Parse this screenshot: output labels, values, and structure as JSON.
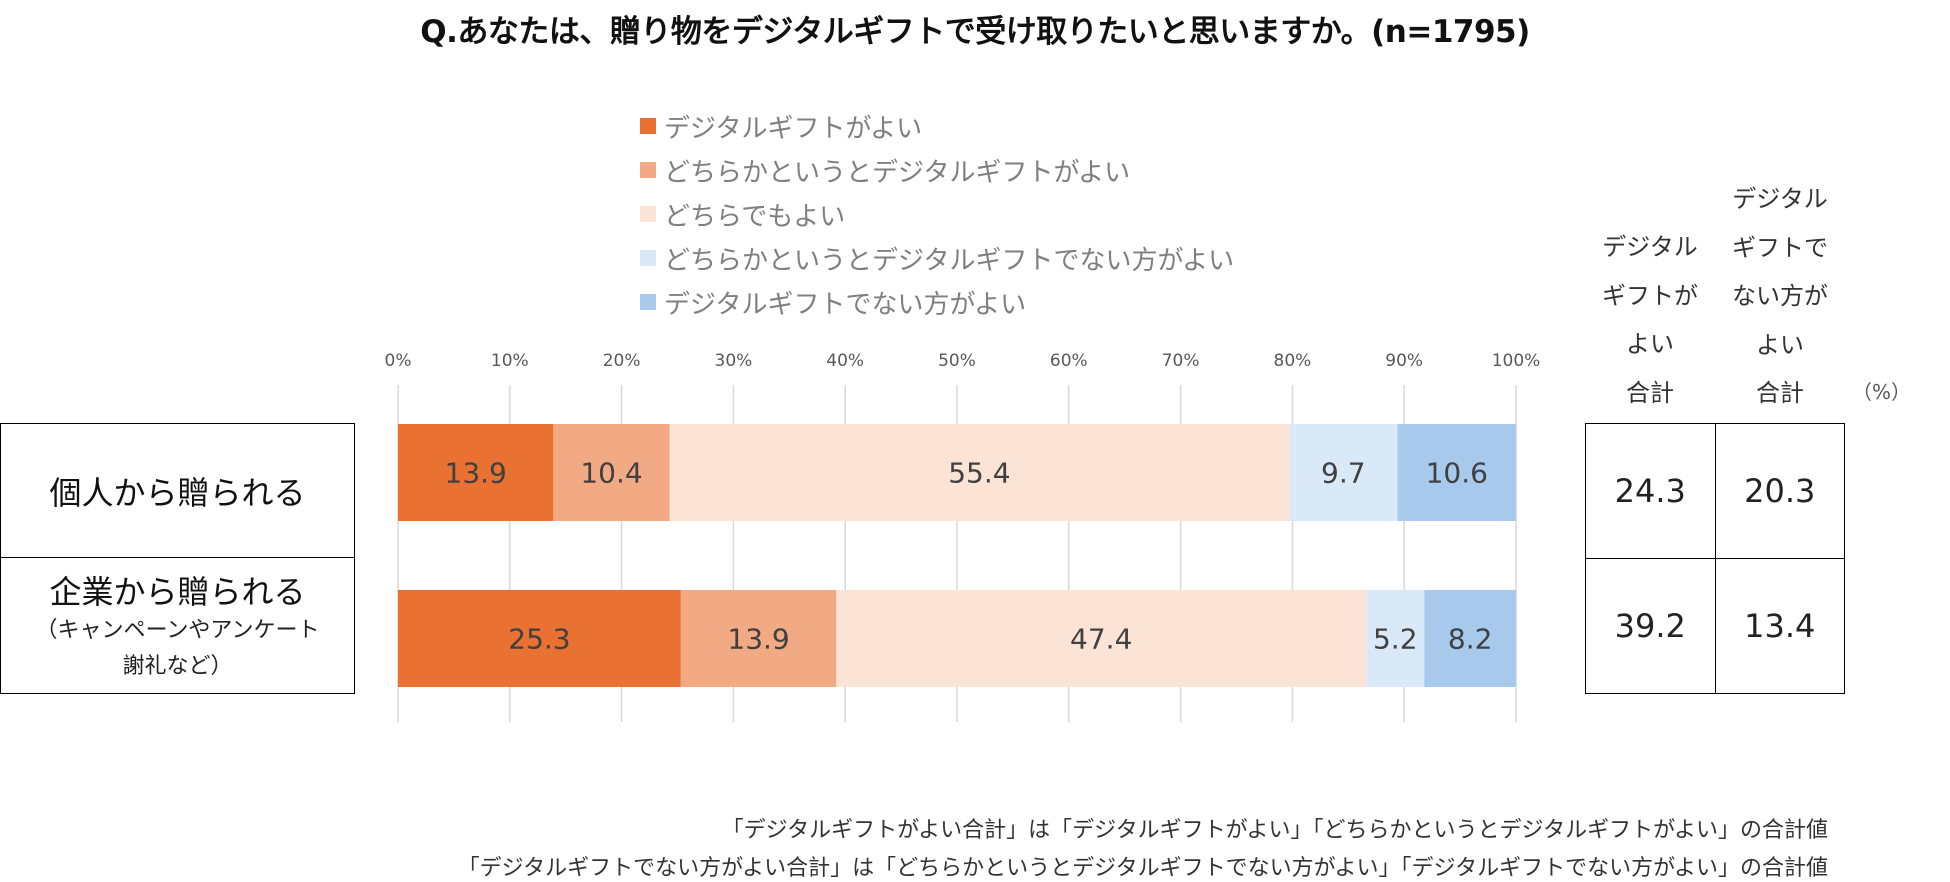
{
  "title": "Q.あなたは、贈り物をデジタルギフトで受け取りたいと思いますか。(n=1795)",
  "chart_data": {
    "type": "bar",
    "orientation": "horizontal",
    "stacked": "percent",
    "title": "Q.あなたは、贈り物をデジタルギフトで受け取りたいと思いますか。(n=1795)",
    "x_ticks": [
      "0%",
      "10%",
      "20%",
      "30%",
      "40%",
      "50%",
      "60%",
      "70%",
      "80%",
      "90%",
      "100%"
    ],
    "xlim": [
      0,
      100
    ],
    "grid": true,
    "legend_position": "top",
    "categories": [
      {
        "main": "個人から贈られる",
        "sub": []
      },
      {
        "main": "企業から贈られる",
        "sub": [
          "（キャンペーンやアンケート",
          "謝礼など）"
        ]
      }
    ],
    "series": [
      {
        "name": "デジタルギフトがよい",
        "color": "#E97132",
        "values": [
          13.9,
          25.3
        ]
      },
      {
        "name": "どちらかというとデジタルギフトがよい",
        "color": "#F2AA84",
        "values": [
          10.4,
          13.9
        ]
      },
      {
        "name": "どちらでもよい",
        "color": "#FBE3D6",
        "values": [
          55.4,
          47.4
        ]
      },
      {
        "name": "どちらかというとデジタルギフトでない方がよい",
        "color": "#DAE9F8",
        "values": [
          9.7,
          5.2
        ]
      },
      {
        "name": "デジタルギフトでない方がよい",
        "color": "#A6C9EC",
        "values": [
          10.6,
          8.2
        ]
      }
    ]
  },
  "totals": {
    "unit": "（%）",
    "headers": [
      [
        "デジタル",
        "ギフトが",
        "よい",
        "合計"
      ],
      [
        "デジタル",
        "ギフトで",
        "ない方が",
        "よい",
        "合計"
      ]
    ],
    "rows": [
      [
        "24.3",
        "20.3"
      ],
      [
        "39.2",
        "13.4"
      ]
    ]
  },
  "notes": [
    "「デジタルギフトがよい合計」は「デジタルギフトがよい」「どちらかというとデジタルギフトがよい」の合計値",
    "「デジタルギフトでない方がよい合計」は「どちらかというとデジタルギフトでない方がよい」「デジタルギフトでない方がよい」の合計値"
  ]
}
